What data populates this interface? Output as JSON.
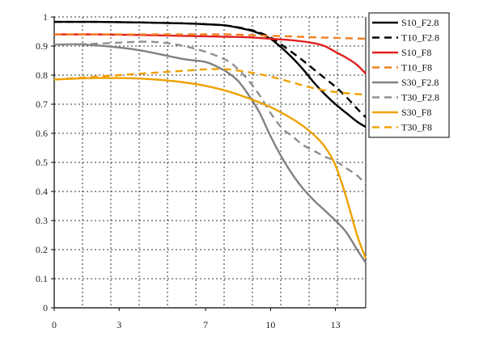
{
  "chart_data": {
    "type": "line",
    "title": "",
    "xlabel": "",
    "ylabel": "",
    "xlim": [
      0,
      14.4
    ],
    "ylim": [
      0,
      1
    ],
    "x_ticks": [
      0,
      3,
      7,
      10,
      13
    ],
    "x_tick_labels": [
      "0",
      "3",
      "7",
      "10",
      "13"
    ],
    "y_ticks": [
      0,
      0.1,
      0.2,
      0.3,
      0.4,
      0.5,
      0.6,
      0.7,
      0.8,
      0.9,
      1
    ],
    "y_tick_labels": [
      "0",
      "0.1",
      "0.2",
      "0.3",
      "0.4",
      "0.5",
      "0.6",
      "0.7",
      "0.8",
      "0.9",
      "1"
    ],
    "grid": true,
    "grid_style": "dotted",
    "legend_position": "right-top-outside",
    "series": [
      {
        "name": "S10_F2.8",
        "color": "#000000",
        "dashed": false,
        "x": [
          0,
          2,
          4,
          6,
          7,
          8,
          9,
          9.5,
          10,
          10.5,
          11,
          11.5,
          12,
          12.5,
          13,
          13.5,
          14,
          14.4
        ],
        "y": [
          0.983,
          0.983,
          0.981,
          0.978,
          0.975,
          0.97,
          0.955,
          0.943,
          0.925,
          0.895,
          0.86,
          0.82,
          0.775,
          0.735,
          0.7,
          0.67,
          0.64,
          0.622
        ]
      },
      {
        "name": "T10_F2.8",
        "color": "#000000",
        "dashed": true,
        "x": [
          0,
          2,
          4,
          6,
          7,
          8,
          9,
          9.5,
          10,
          10.5,
          11,
          11.5,
          12,
          12.5,
          13,
          13.5,
          14,
          14.4
        ],
        "y": [
          0.983,
          0.983,
          0.981,
          0.978,
          0.975,
          0.97,
          0.957,
          0.946,
          0.93,
          0.905,
          0.878,
          0.85,
          0.82,
          0.79,
          0.76,
          0.725,
          0.685,
          0.655
        ]
      },
      {
        "name": "S10_F8",
        "color": "#e02020",
        "dashed": false,
        "x": [
          0,
          2,
          4,
          6,
          8,
          9,
          10,
          11,
          12,
          12.5,
          13,
          13.5,
          14,
          14.4
        ],
        "y": [
          0.94,
          0.94,
          0.938,
          0.935,
          0.932,
          0.93,
          0.925,
          0.92,
          0.91,
          0.9,
          0.88,
          0.86,
          0.835,
          0.805
        ]
      },
      {
        "name": "T10_F8",
        "color": "#f08020",
        "dashed": true,
        "x": [
          0,
          2,
          4,
          6,
          8,
          10,
          11,
          12,
          13,
          14,
          14.4
        ],
        "y": [
          0.94,
          0.94,
          0.94,
          0.94,
          0.94,
          0.935,
          0.933,
          0.93,
          0.928,
          0.926,
          0.925
        ]
      },
      {
        "name": "S30_F2.8",
        "color": "#808080",
        "dashed": false,
        "x": [
          0,
          1,
          2,
          3,
          4,
          5,
          6,
          7,
          7.5,
          8,
          8.5,
          9,
          9.5,
          10,
          10.5,
          11,
          11.5,
          12,
          12.5,
          13,
          13.5,
          14,
          14.4
        ],
        "y": [
          0.905,
          0.906,
          0.902,
          0.895,
          0.885,
          0.87,
          0.855,
          0.845,
          0.83,
          0.81,
          0.78,
          0.73,
          0.67,
          0.59,
          0.52,
          0.46,
          0.41,
          0.37,
          0.335,
          0.3,
          0.26,
          0.2,
          0.155
        ]
      },
      {
        "name": "T30_F2.8",
        "color": "#909090",
        "dashed": true,
        "x": [
          0,
          2,
          4,
          5,
          6,
          7,
          8,
          8.5,
          9,
          9.5,
          10,
          10.5,
          11,
          11.5,
          12,
          12.5,
          13,
          13.5,
          14,
          14.4
        ],
        "y": [
          0.905,
          0.908,
          0.915,
          0.912,
          0.9,
          0.88,
          0.85,
          0.82,
          0.78,
          0.73,
          0.67,
          0.62,
          0.59,
          0.56,
          0.54,
          0.52,
          0.505,
          0.48,
          0.455,
          0.425
        ]
      },
      {
        "name": "S30_F8",
        "color": "#f0a000",
        "dashed": false,
        "x": [
          0,
          1,
          2,
          3,
          4,
          5,
          6,
          7,
          8,
          9,
          10,
          11,
          11.5,
          12,
          12.5,
          13,
          13.5,
          14,
          14.4
        ],
        "y": [
          0.785,
          0.788,
          0.79,
          0.79,
          0.788,
          0.783,
          0.775,
          0.763,
          0.745,
          0.72,
          0.69,
          0.65,
          0.625,
          0.595,
          0.555,
          0.49,
          0.38,
          0.25,
          0.17
        ]
      },
      {
        "name": "T30_F8",
        "color": "#f0a000",
        "dashed": true,
        "x": [
          0,
          2,
          4,
          6,
          7,
          8,
          9,
          10,
          11,
          12,
          13,
          14,
          14.4
        ],
        "y": [
          0.785,
          0.795,
          0.805,
          0.815,
          0.82,
          0.82,
          0.81,
          0.795,
          0.775,
          0.755,
          0.742,
          0.735,
          0.733
        ]
      }
    ]
  }
}
